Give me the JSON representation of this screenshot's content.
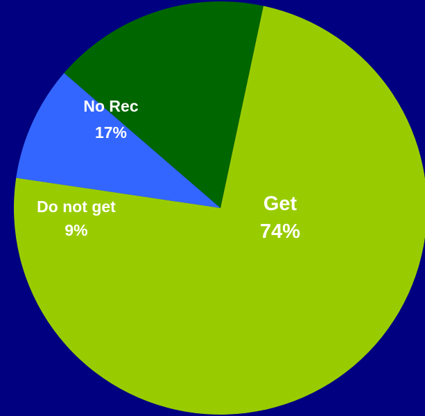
{
  "chart_data": {
    "type": "pie",
    "title": "",
    "background": "#000080",
    "legend": "none",
    "slices": [
      {
        "label": "Get",
        "value": 74,
        "display": "74%",
        "color": "#99CC00"
      },
      {
        "label": "Do not get",
        "value": 9,
        "display": "9%",
        "color": "#3366FF"
      },
      {
        "label": "No Rec",
        "value": 17,
        "display": "17%",
        "color": "#006600"
      }
    ]
  }
}
